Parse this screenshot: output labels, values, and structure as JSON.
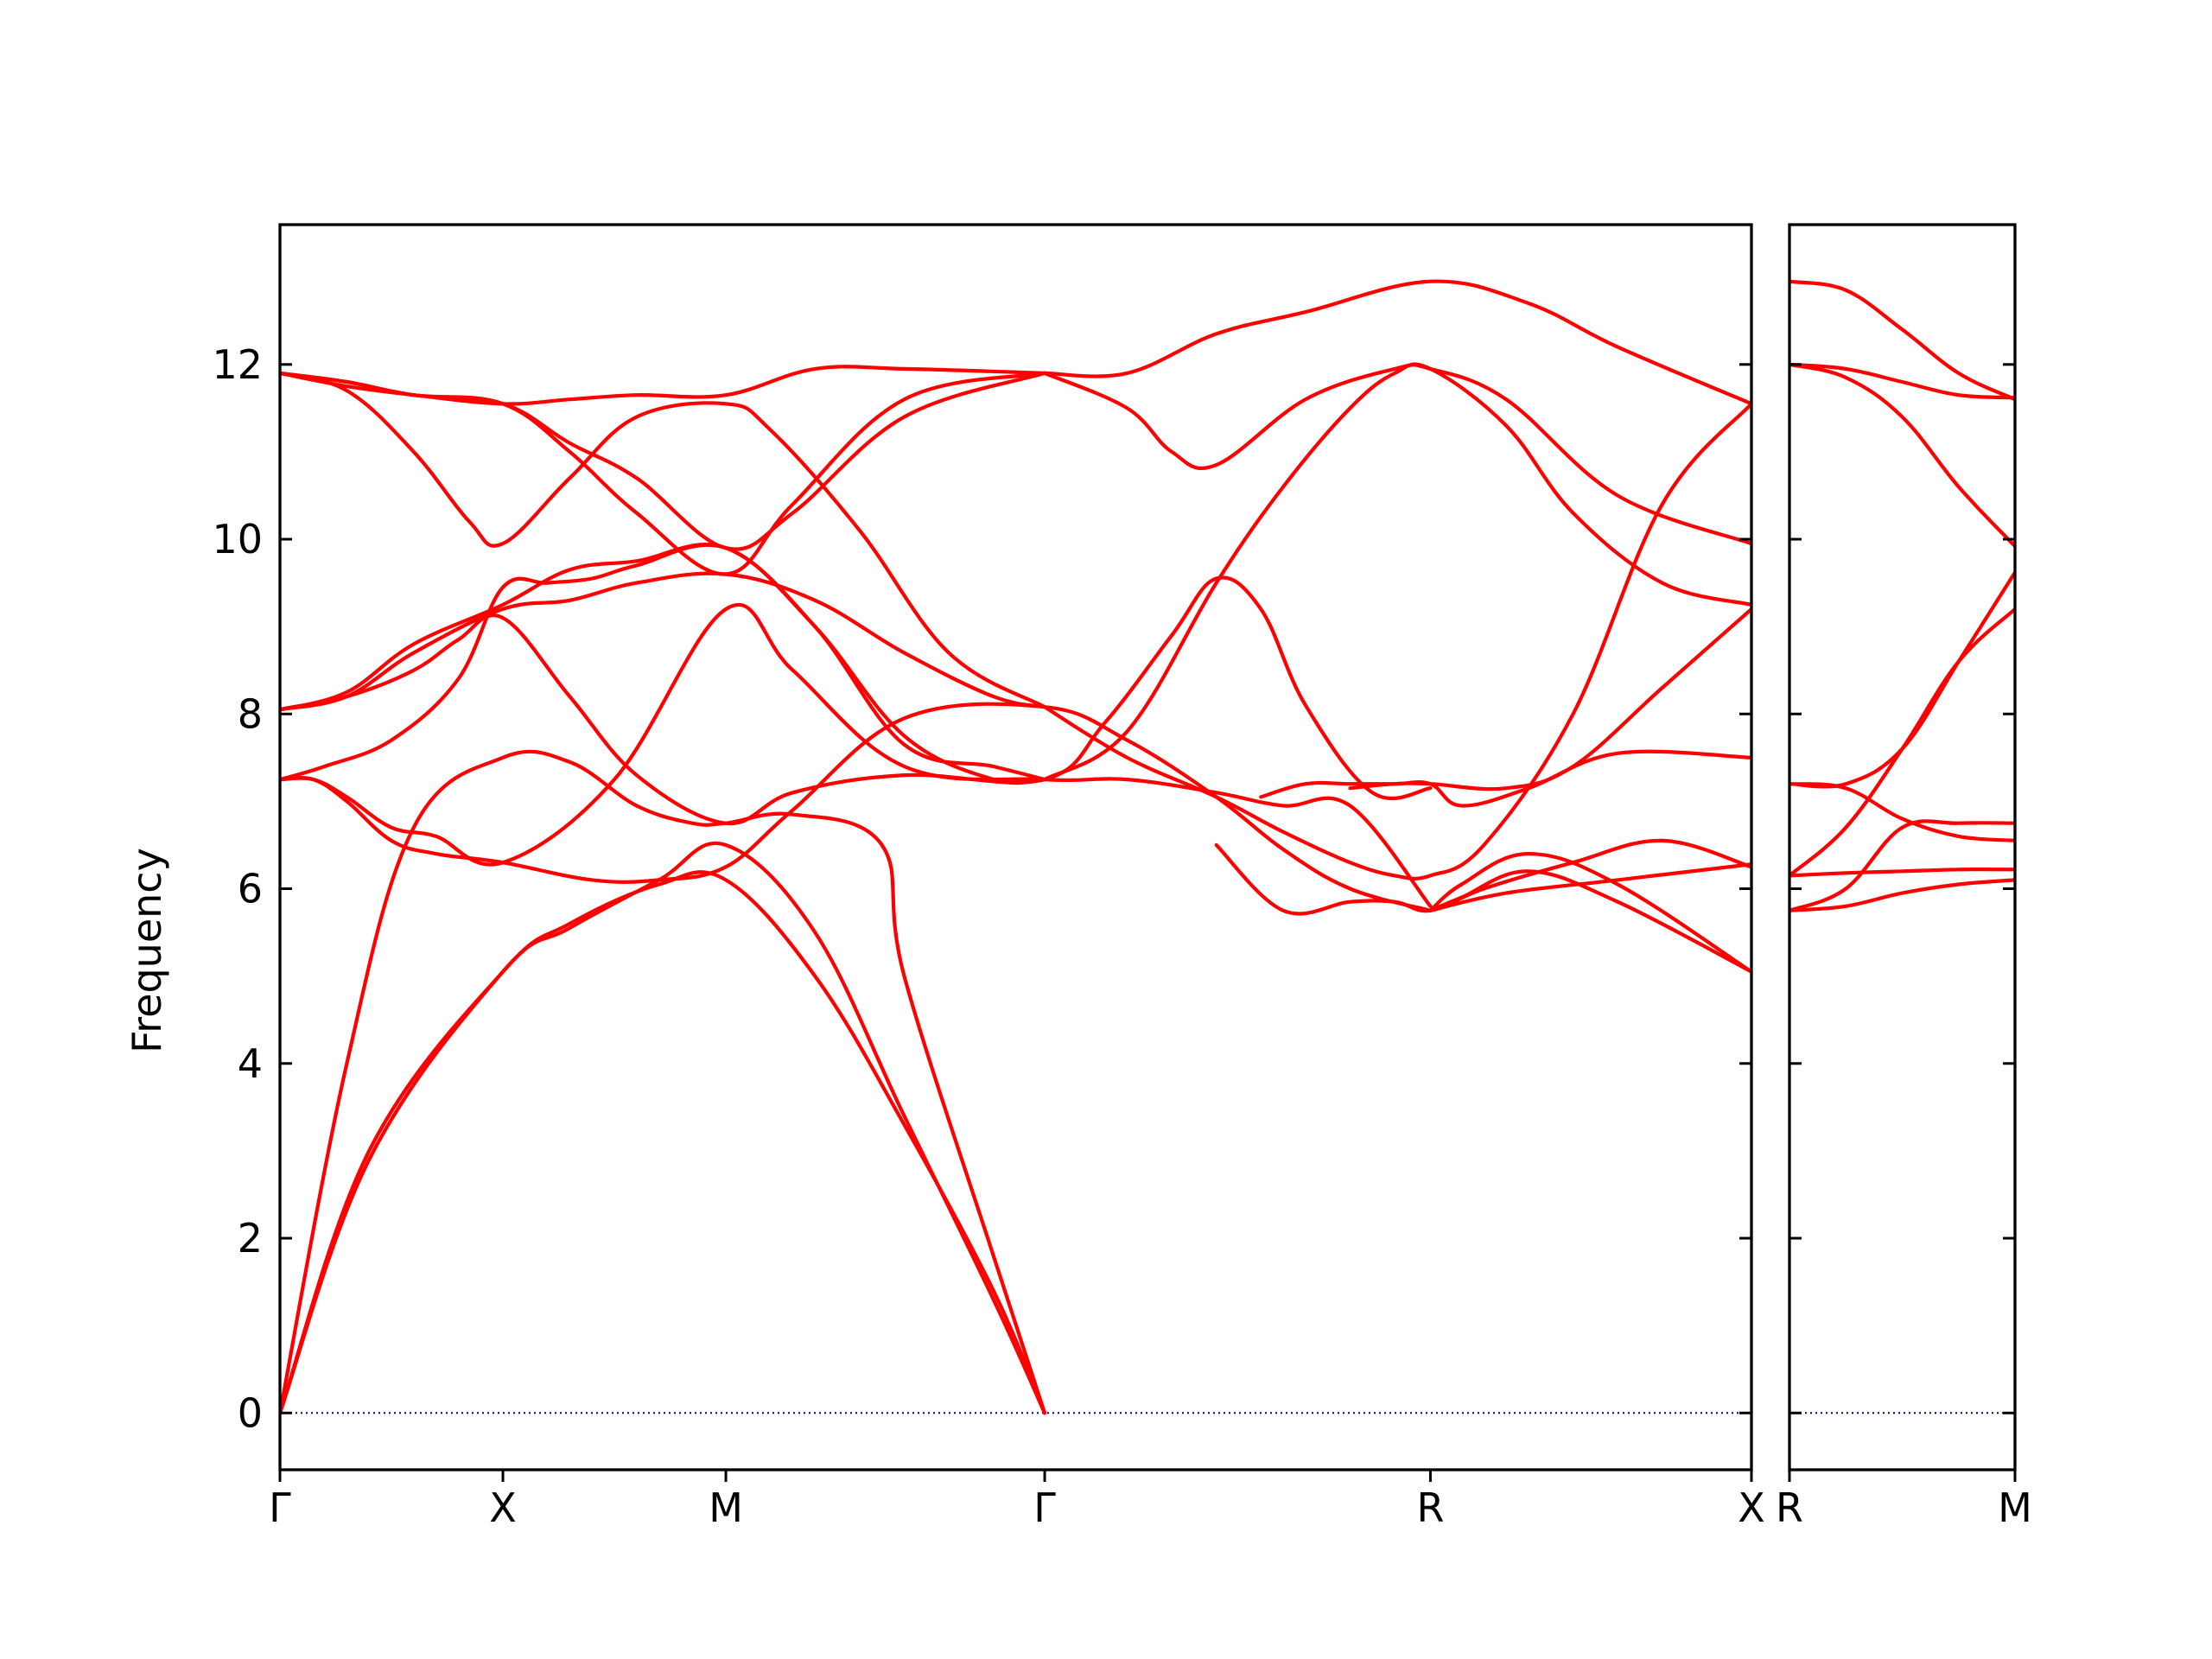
{
  "chart_data": {
    "type": "line",
    "ylabel": "Frequency",
    "ylim": [
      -0.65,
      13.6
    ],
    "yticks": [
      "0",
      "2",
      "4",
      "6",
      "8",
      "10",
      "12"
    ],
    "zero_line": {
      "y": 0,
      "color": "#00008b",
      "style": "dotted"
    },
    "colors": {
      "bands": "#ff0000",
      "axes": "#000000"
    },
    "grid": false,
    "panels": [
      {
        "name": "left",
        "xlim": [
          0,
          6.6
        ],
        "xticks": [
          {
            "x": 0,
            "label": "Γ"
          },
          {
            "x": 1.0,
            "label": "X"
          },
          {
            "x": 2.0,
            "label": "M"
          },
          {
            "x": 3.43,
            "label": "Γ"
          },
          {
            "x": 5.16,
            "label": "R"
          },
          {
            "x": 6.6,
            "label": "X"
          }
        ],
        "bands": [
          {
            "x": [
              0,
              0.4,
              1.0,
              1.3,
              1.7,
              2.0,
              2.4,
              2.8,
              3.2,
              3.43
            ],
            "y": [
              0.0,
              3.0,
              5.05,
              5.6,
              6.05,
              6.1,
              5.0,
              3.3,
              1.4,
              0.0
            ]
          },
          {
            "x": [
              0,
              0.4,
              1.0,
              1.3,
              1.7,
              2.0,
              2.4,
              2.8,
              3.2,
              3.43
            ],
            "y": [
              0.0,
              2.9,
              5.05,
              5.55,
              6.1,
              6.5,
              5.5,
              3.4,
              1.3,
              0.0
            ]
          },
          {
            "x": [
              0,
              0.3,
              0.6,
              1.0,
              1.3,
              1.6,
              1.85,
              2.0,
              2.3,
              2.7,
              2.8,
              3.2,
              3.43
            ],
            "y": [
              0.0,
              4.0,
              6.7,
              7.5,
              7.45,
              6.95,
              6.75,
              6.75,
              6.85,
              6.5,
              5.0,
              1.8,
              0.0
            ]
          },
          {
            "x": [
              0,
              0.15,
              0.3,
              0.5,
              0.7,
              1.0,
              1.4,
              1.7,
              2.0,
              2.3,
              2.8,
              3.43,
              3.8,
              4.2,
              4.5,
              4.8,
              5.16
            ],
            "y": [
              7.25,
              7.25,
              7.0,
              6.55,
              6.4,
              6.3,
              6.1,
              6.1,
              6.25,
              6.9,
              7.95,
              8.08,
              7.7,
              7.05,
              6.45,
              6.0,
              5.75
            ]
          },
          {
            "x": [
              0,
              0.15,
              0.3,
              0.5,
              0.7,
              1.0,
              1.5,
              2.0,
              2.3,
              2.8,
              3.43,
              3.8,
              4.2,
              4.5,
              4.8,
              5.16
            ],
            "y": [
              7.25,
              7.25,
              7.05,
              6.7,
              6.6,
              6.3,
              7.25,
              9.2,
              8.5,
              7.4,
              7.25,
              7.25,
              7.1,
              6.95,
              6.95,
              5.8
            ]
          },
          {
            "x": [
              0,
              0.3,
              0.6,
              0.8,
              1.0,
              1.3,
              1.6,
              2.0,
              2.3,
              2.8,
              3.43,
              3.7,
              4.0,
              4.2,
              4.4,
              4.6,
              4.9,
              5.16
            ],
            "y": [
              8.05,
              8.2,
              8.5,
              8.85,
              9.1,
              8.2,
              7.3,
              6.75,
              7.1,
              7.3,
              7.25,
              7.9,
              8.9,
              9.55,
              9.2,
              8.1,
              7.1,
              7.15
            ]
          },
          {
            "x": [
              0,
              0.2,
              0.5,
              0.8,
              1.0,
              1.2,
              1.4,
              1.6,
              2.0,
              2.4,
              2.8,
              3.2,
              3.43
            ],
            "y": [
              7.25,
              7.4,
              7.7,
              8.4,
              9.45,
              9.5,
              9.55,
              9.7,
              9.9,
              9.0,
              7.75,
              7.25,
              7.25
            ]
          },
          {
            "x": [
              0,
              0.3,
              0.6,
              1.0,
              1.3,
              1.6,
              2.0,
              2.4,
              2.8,
              3.2,
              3.43
            ],
            "y": [
              8.05,
              8.2,
              8.7,
              9.2,
              9.3,
              9.5,
              9.6,
              9.3,
              8.7,
              8.2,
              8.08
            ]
          },
          {
            "x": [
              0,
              0.3,
              0.6,
              1.0,
              1.3,
              1.6,
              2.0,
              2.4,
              2.8,
              3.2,
              3.43
            ],
            "y": [
              8.05,
              8.25,
              8.8,
              9.25,
              9.65,
              9.75,
              9.9,
              9.0,
              7.65,
              7.4,
              7.25
            ]
          },
          {
            "x": [
              0,
              0.3,
              0.6,
              0.85,
              1.0,
              1.3,
              1.6,
              2.0,
              2.2,
              2.6,
              3.0,
              3.43
            ],
            "y": [
              11.9,
              11.7,
              11.0,
              10.2,
              9.95,
              10.7,
              11.4,
              11.55,
              11.25,
              10.1,
              8.7,
              8.08
            ]
          },
          {
            "x": [
              0,
              0.3,
              0.6,
              1.0,
              1.3,
              1.6,
              2.0,
              2.3,
              2.8,
              3.43
            ],
            "y": [
              11.9,
              11.8,
              11.65,
              11.55,
              11.0,
              10.3,
              9.6,
              10.4,
              11.6,
              11.9
            ]
          },
          {
            "x": [
              0,
              0.3,
              0.6,
              1.0,
              1.3,
              1.6,
              2.0,
              2.4,
              2.8,
              3.43
            ],
            "y": [
              11.9,
              11.75,
              11.65,
              11.55,
              11.6,
              11.65,
              11.65,
              11.95,
              11.95,
              11.9
            ]
          },
          {
            "x": [
              0,
              0.3,
              0.6,
              1.0,
              1.3,
              1.6,
              2.0,
              2.3,
              2.8,
              3.43
            ],
            "y": [
              11.9,
              11.8,
              11.65,
              11.55,
              11.1,
              10.7,
              9.9,
              10.3,
              11.4,
              11.9
            ]
          },
          {
            "x": [
              3.43,
              3.8,
              4.2,
              4.6,
              5.16,
              5.6,
              6.0,
              6.6
            ],
            "y": [
              11.9,
              11.9,
              12.35,
              12.6,
              12.95,
              12.7,
              12.2,
              11.55
            ]
          },
          {
            "x": [
              3.43,
              3.8,
              4.0,
              4.2,
              4.6,
              5.0,
              5.16,
              5.5,
              6.0,
              6.6
            ],
            "y": [
              11.9,
              11.5,
              11.0,
              10.85,
              11.6,
              11.95,
              11.95,
              11.6,
              10.5,
              9.95
            ]
          },
          {
            "x": [
              3.43,
              3.8,
              4.2,
              4.5,
              4.8,
              5.0,
              5.16,
              5.5,
              5.8,
              6.2,
              6.6
            ],
            "y": [
              7.25,
              7.8,
              9.5,
              10.6,
              11.5,
              11.9,
              11.95,
              11.3,
              10.3,
              9.5,
              9.25
            ]
          },
          {
            "x": [
              3.43,
              3.8,
              4.2,
              4.5,
              4.8,
              5.0,
              5.16,
              5.4,
              5.8,
              6.2,
              6.6
            ],
            "y": [
              8.08,
              7.5,
              7.05,
              6.65,
              6.3,
              6.15,
              6.15,
              6.5,
              8.0,
              10.4,
              11.55
            ]
          },
          {
            "x": [
              4.2,
              4.5,
              4.8,
              5.0,
              5.16,
              5.4,
              5.8,
              6.2,
              6.6
            ],
            "y": [
              6.5,
              5.75,
              5.85,
              5.85,
              5.75,
              6.0,
              6.3,
              6.55,
              6.25
            ]
          },
          {
            "x": [
              4.4,
              4.6,
              4.8,
              5.0,
              5.16,
              5.3,
              5.6,
              6.0,
              6.6
            ],
            "y": [
              7.05,
              7.2,
              7.2,
              7.2,
              7.2,
              6.95,
              7.15,
              7.55,
              7.5
            ]
          },
          {
            "x": [
              4.8,
              5.0,
              5.16,
              5.5,
              5.8,
              6.2,
              6.6
            ],
            "y": [
              7.15,
              7.2,
              7.2,
              7.15,
              7.4,
              8.3,
              9.2
            ]
          },
          {
            "x": [
              5.16,
              5.3,
              5.6,
              6.0,
              6.6
            ],
            "y": [
              5.75,
              6.05,
              6.4,
              6.05,
              5.05
            ]
          },
          {
            "x": [
              5.16,
              5.3,
              5.6,
              6.0,
              6.6
            ],
            "y": [
              5.75,
              5.9,
              6.2,
              5.85,
              5.05
            ]
          },
          {
            "x": [
              5.16,
              5.5,
              6.0,
              6.6
            ],
            "y": [
              5.75,
              5.95,
              6.1,
              6.28
            ]
          }
        ]
      },
      {
        "name": "right",
        "xlim": [
          0,
          1
        ],
        "xticks": [
          {
            "x": 0,
            "label": "R"
          },
          {
            "x": 1,
            "label": "M"
          }
        ],
        "bands": [
          {
            "x": [
              0,
              0.25,
              0.5,
              0.75,
              1.0
            ],
            "y": [
              12.95,
              12.85,
              12.4,
              11.9,
              11.6
            ]
          },
          {
            "x": [
              0,
              0.25,
              0.5,
              0.75,
              1.0
            ],
            "y": [
              12.0,
              11.95,
              11.8,
              11.65,
              11.62
            ]
          },
          {
            "x": [
              0,
              0.25,
              0.5,
              0.75,
              1.0
            ],
            "y": [
              12.0,
              11.85,
              11.4,
              10.6,
              9.92
            ]
          },
          {
            "x": [
              0,
              0.25,
              0.5,
              0.75,
              1.0
            ],
            "y": [
              7.2,
              7.2,
              7.6,
              8.6,
              9.62
            ]
          },
          {
            "x": [
              0,
              0.25,
              0.5,
              0.75,
              1.0
            ],
            "y": [
              6.15,
              6.7,
              7.6,
              8.6,
              9.2
            ]
          },
          {
            "x": [
              0,
              0.25,
              0.5,
              0.75,
              1.0
            ],
            "y": [
              7.2,
              7.15,
              6.8,
              6.6,
              6.55
            ]
          },
          {
            "x": [
              0,
              0.25,
              0.5,
              0.75,
              1.0
            ],
            "y": [
              5.75,
              6.0,
              6.7,
              6.75,
              6.75
            ]
          },
          {
            "x": [
              0,
              0.25,
              0.5,
              0.75,
              1.0
            ],
            "y": [
              6.15,
              6.18,
              6.2,
              6.22,
              6.22
            ]
          },
          {
            "x": [
              0,
              0.25,
              0.5,
              0.75,
              1.0
            ],
            "y": [
              5.75,
              5.8,
              5.95,
              6.05,
              6.1
            ]
          }
        ]
      }
    ]
  }
}
